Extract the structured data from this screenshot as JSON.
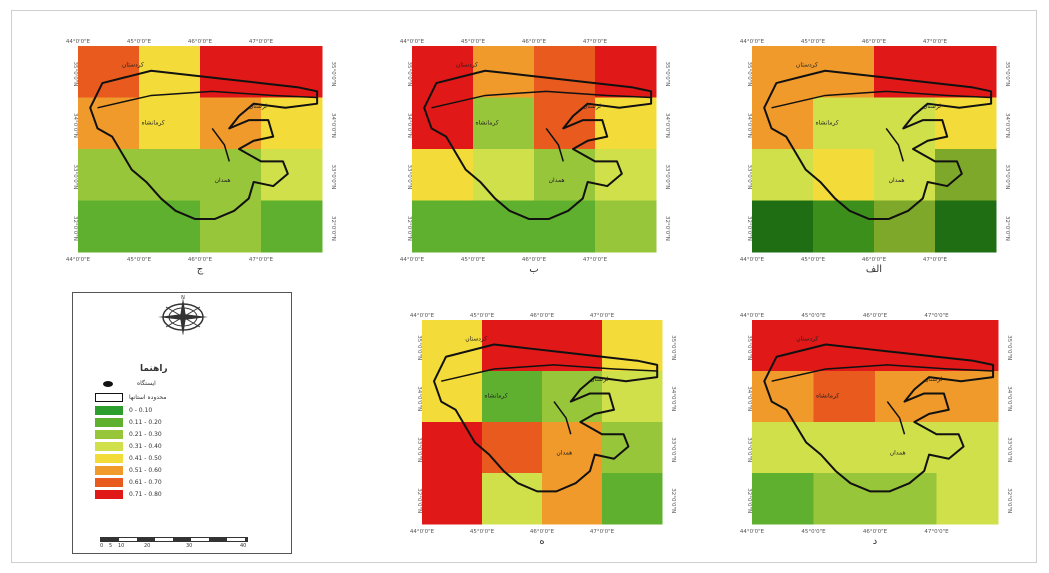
{
  "ticks": {
    "lon": [
      "44°0'0\"E",
      "45°0'0\"E",
      "46°0'0\"E",
      "47°0'0\"E"
    ],
    "lat": [
      "35°0'0\"N",
      "34°0'0\"N",
      "33°0'0\"N",
      "32°0'0\"N"
    ]
  },
  "places": {
    "north": "کردستان",
    "west": "کرمانشاه",
    "center": "همدان",
    "east": "لرستان"
  },
  "colors": {
    "c1": "#2e9e2e",
    "c2": "#5fb02f",
    "c3": "#98c63a",
    "c4": "#cfe04a",
    "c5": "#f3dc3a",
    "c6": "#f19a2c",
    "c7": "#e85a1e",
    "c8": "#e01818",
    "dg1": "#1f6e14",
    "dg2": "#3d8f1c",
    "dg3": "#7ea82a"
  },
  "panels": [
    {
      "id": "top-left",
      "caption": "ج",
      "grid": [
        [
          "c7",
          "c5",
          "c8",
          "c8"
        ],
        [
          "c6",
          "c5",
          "c6",
          "c5"
        ],
        [
          "c3",
          "c3",
          "c3",
          "c4"
        ],
        [
          "c2",
          "c2",
          "c3",
          "c2"
        ]
      ]
    },
    {
      "id": "top-middle",
      "caption": "ب",
      "grid": [
        [
          "c8",
          "c6",
          "c7",
          "c8"
        ],
        [
          "c8",
          "c3",
          "c7",
          "c5"
        ],
        [
          "c5",
          "c4",
          "c3",
          "c4"
        ],
        [
          "c2",
          "c2",
          "c2",
          "c3"
        ]
      ]
    },
    {
      "id": "top-right",
      "caption": "الف",
      "grid": [
        [
          "c6",
          "c6",
          "c8",
          "c8"
        ],
        [
          "c6",
          "c4",
          "c4",
          "c5"
        ],
        [
          "c4",
          "c5",
          "c4",
          "dg3"
        ],
        [
          "dg1",
          "dg2",
          "dg3",
          "dg1"
        ]
      ]
    },
    {
      "id": "bottom-middle",
      "caption": "ه",
      "grid": [
        [
          "c5",
          "c8",
          "c8",
          "c5"
        ],
        [
          "c5",
          "c2",
          "c3",
          "c4"
        ],
        [
          "c8",
          "c7",
          "c6",
          "c3"
        ],
        [
          "c8",
          "c4",
          "c6",
          "c2"
        ]
      ]
    },
    {
      "id": "bottom-right",
      "caption": "د",
      "grid": [
        [
          "c8",
          "c8",
          "c8",
          "c8"
        ],
        [
          "c6",
          "c7",
          "c6",
          "c6"
        ],
        [
          "c4",
          "c4",
          "c4",
          "c4"
        ],
        [
          "c2",
          "c3",
          "c3",
          "c4"
        ]
      ]
    }
  ],
  "legend": {
    "title": "راهنما",
    "point_label": "ایستگاه",
    "boundary_label": "محدوده استانها",
    "classes": [
      {
        "color": "#2e9e2e",
        "label": "0 - 0.10"
      },
      {
        "color": "#5fb02f",
        "label": "0.11 - 0.20"
      },
      {
        "color": "#98c63a",
        "label": "0.21 - 0.30"
      },
      {
        "color": "#cfe04a",
        "label": "0.31 - 0.40"
      },
      {
        "color": "#f3dc3a",
        "label": "0.41 - 0.50"
      },
      {
        "color": "#f19a2c",
        "label": "0.51 - 0.60"
      },
      {
        "color": "#e85a1e",
        "label": "0.61 - 0.70"
      },
      {
        "color": "#e01818",
        "label": "0.71 - 0.80"
      }
    ],
    "scale_labels": [
      "0",
      "5",
      "10",
      "20",
      "30",
      "40"
    ]
  }
}
